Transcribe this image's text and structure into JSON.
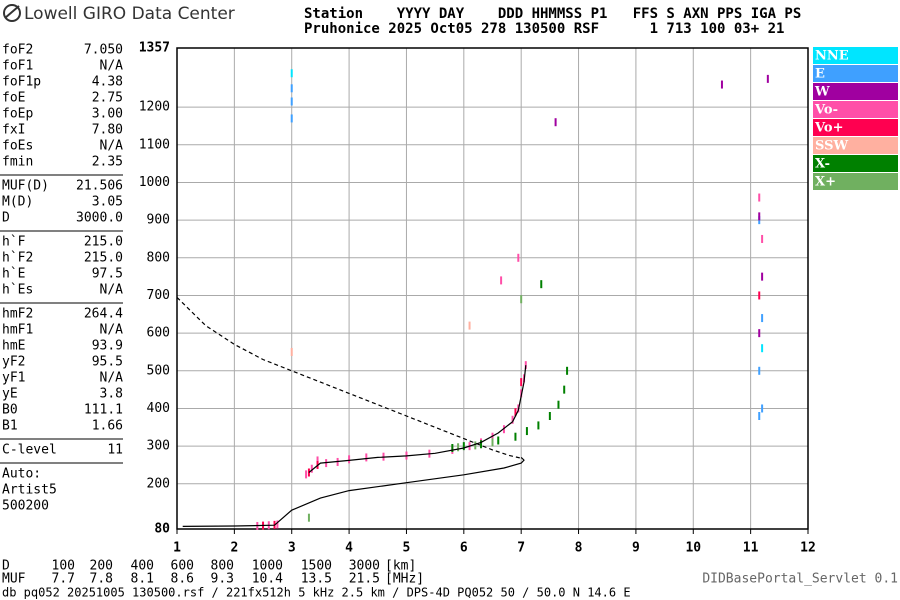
{
  "header": {
    "title": "Lowell GIRO Data Center",
    "line1": "Station    YYYY DAY    DDD HHMMSS P1   FFS S AXN PPS IGA PS",
    "line2": "Pruhonice 2025 Oct05 278 130500 RSF      1 713 100 03+ 21"
  },
  "parameters": [
    [
      {
        "name": "foF2",
        "value": "7.050"
      },
      {
        "name": "foF1",
        "value": "N/A"
      },
      {
        "name": "foF1p",
        "value": "4.38"
      },
      {
        "name": "foE",
        "value": "2.75"
      },
      {
        "name": "foEp",
        "value": "3.00"
      },
      {
        "name": "fxI",
        "value": "7.80"
      },
      {
        "name": "foEs",
        "value": "N/A"
      },
      {
        "name": "fmin",
        "value": "2.35"
      }
    ],
    [
      {
        "name": "MUF(D)",
        "value": "21.506"
      },
      {
        "name": "M(D)",
        "value": "3.05"
      },
      {
        "name": "D",
        "value": "3000.0"
      }
    ],
    [
      {
        "name": "h`F",
        "value": "215.0"
      },
      {
        "name": "h`F2",
        "value": "215.0"
      },
      {
        "name": "h`E",
        "value": "97.5"
      },
      {
        "name": "h`Es",
        "value": "N/A"
      }
    ],
    [
      {
        "name": "hmF2",
        "value": "264.4"
      },
      {
        "name": "hmF1",
        "value": "N/A"
      },
      {
        "name": "hmE",
        "value": "93.9"
      },
      {
        "name": "yF2",
        "value": "95.5"
      },
      {
        "name": "yF1",
        "value": "N/A"
      },
      {
        "name": "yE",
        "value": "3.8"
      },
      {
        "name": "B0",
        "value": "111.1"
      },
      {
        "name": "B1",
        "value": "1.66"
      }
    ],
    [
      {
        "name": "C-level",
        "value": "11"
      }
    ],
    [
      {
        "name": "Auto:"
      },
      {
        "name": "Artist5"
      },
      {
        "name": "500200"
      }
    ]
  ],
  "muf_table": [
    {
      "label": "D",
      "values": [
        100,
        200,
        400,
        600,
        800,
        1000,
        1500,
        3000
      ],
      "unit": "[km]"
    },
    {
      "label": "MUF",
      "values": [
        7.7,
        7.8,
        8.1,
        8.6,
        9.3,
        10.4,
        13.5,
        21.5
      ],
      "unit": "[MHz]"
    }
  ],
  "footer": {
    "left": "db pq052 20251005 130500.rsf / 221fx512h 5 kHz 2.5 km / DPS-4D PQ052 50 / 50.0 N 14.6 E",
    "right": "DIDBasePortal_Servlet 0.1"
  },
  "chart_data": {
    "type": "scatter",
    "xlim": [
      1,
      12
    ],
    "ylim": [
      80,
      1357
    ],
    "xticks": [
      1,
      2,
      3,
      4,
      5,
      6,
      7,
      8,
      9,
      10,
      11,
      12
    ],
    "yticks": [
      80,
      200,
      300,
      400,
      500,
      600,
      700,
      800,
      900,
      1000,
      1100,
      1200,
      1357
    ],
    "grid": true,
    "legend": "right",
    "series": [
      {
        "name": "NNE",
        "color": "#00e5ff",
        "x": [
          3.0,
          11.2
        ],
        "y": [
          1290,
          560
        ]
      },
      {
        "name": "E",
        "color": "#3fa0ff",
        "x": [
          3.0,
          3.0,
          3.0,
          11.15,
          11.2,
          11.15,
          11.2,
          11.15
        ],
        "y": [
          1250,
          1215,
          1170,
          900,
          640,
          500,
          400,
          380
        ]
      },
      {
        "name": "W",
        "color": "#a000a0",
        "x": [
          11.15,
          11.2,
          11.15,
          10.5,
          11.3,
          7.6
        ],
        "y": [
          910,
          750,
          600,
          1260,
          1275,
          1160
        ]
      },
      {
        "name": "Vo-",
        "color": "#ff4fa8",
        "x": [
          2.4,
          2.6,
          2.75,
          3.25,
          3.35,
          3.45,
          3.6,
          3.8,
          4.0,
          4.3,
          4.6,
          5.0,
          5.4,
          5.8,
          6.1,
          6.3,
          6.5,
          6.7,
          6.85,
          6.95,
          7.0,
          7.05,
          7.08,
          6.65,
          6.95,
          11.15,
          11.2
        ],
        "y": [
          88,
          90,
          92,
          225,
          240,
          262,
          255,
          258,
          265,
          270,
          272,
          275,
          280,
          290,
          300,
          310,
          325,
          345,
          370,
          400,
          440,
          480,
          515,
          740,
          800,
          960,
          850
        ]
      },
      {
        "name": "Vo+",
        "color": "#ff0050",
        "x": [
          2.5,
          2.7,
          3.3,
          3.45,
          6.9,
          7.0,
          11.15
        ],
        "y": [
          89,
          91,
          230,
          250,
          390,
          470,
          700
        ]
      },
      {
        "name": "SSW",
        "color": "#ffb0a0",
        "x": [
          3.0,
          6.1
        ],
        "y": [
          550,
          620
        ]
      },
      {
        "name": "X-",
        "color": "#008000",
        "x": [
          5.8,
          6.0,
          6.3,
          6.6,
          6.9,
          7.1,
          7.3,
          7.5,
          7.65,
          7.75,
          7.8,
          7.35
        ],
        "y": [
          295,
          300,
          305,
          315,
          325,
          340,
          355,
          380,
          410,
          450,
          500,
          730
        ]
      },
      {
        "name": "X+",
        "color": "#70b060",
        "x": [
          3.3,
          5.9,
          6.2,
          6.5,
          7.0
        ],
        "y": [
          110,
          297,
          302,
          310,
          690
        ]
      }
    ],
    "lines": [
      {
        "color": "#000000",
        "dashed": false,
        "x": [
          1.1,
          2.0,
          2.7,
          3.0,
          3.5,
          4.0,
          5.0,
          6.0,
          6.7,
          7.0,
          7.05,
          7.0
        ],
        "y": [
          87,
          88,
          90,
          130,
          162,
          182,
          203,
          224,
          242,
          255,
          263,
          270
        ]
      },
      {
        "color": "#000000",
        "dashed": false,
        "x": [
          3.3,
          3.5,
          4.0,
          4.5,
          5.0,
          5.5,
          6.0,
          6.3,
          6.6,
          6.85,
          6.95,
          7.05,
          7.08
        ],
        "y": [
          230,
          255,
          262,
          270,
          274,
          281,
          295,
          310,
          335,
          365,
          395,
          470,
          515
        ]
      },
      {
        "color": "#000000",
        "dashed": true,
        "x": [
          1.0,
          1.5,
          2.0,
          2.5,
          3.0,
          3.5,
          4.0,
          4.5,
          5.0,
          5.5,
          6.0,
          6.5,
          6.8,
          7.0
        ],
        "y": [
          695,
          620,
          570,
          530,
          500,
          470,
          440,
          410,
          380,
          350,
          320,
          290,
          275,
          268
        ]
      }
    ]
  }
}
